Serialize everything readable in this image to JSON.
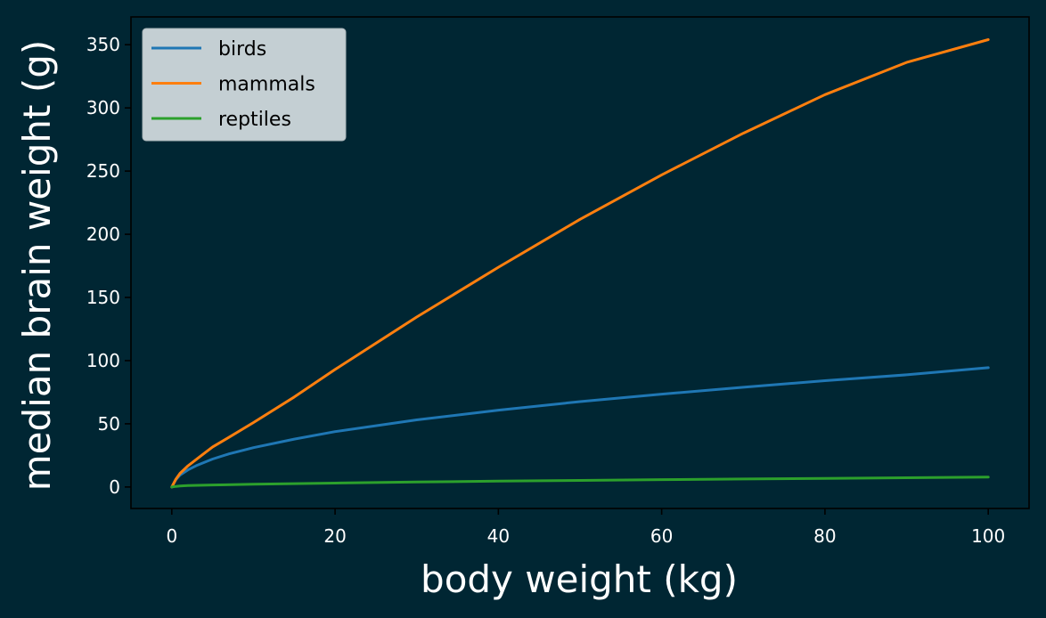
{
  "chart_data": {
    "type": "line",
    "xlabel": "body weight (kg)",
    "ylabel": "median brain weight (g)",
    "xlim": [
      -5,
      105
    ],
    "ylim": [
      -17,
      372
    ],
    "xticks": [
      0,
      20,
      40,
      60,
      80,
      100
    ],
    "yticks": [
      0,
      50,
      100,
      150,
      200,
      250,
      300,
      350
    ],
    "grid": false,
    "legend_position": "top-left",
    "colors": {
      "background": "#002633",
      "legend_bg": "#cfd8dc",
      "text": "#ffffff"
    },
    "series": [
      {
        "name": "birds",
        "color": "#1f77b4",
        "x": [
          0,
          0.5,
          1,
          2,
          3,
          5,
          7,
          10,
          15,
          20,
          30,
          40,
          50,
          60,
          70,
          80,
          90,
          100
        ],
        "y": [
          0,
          5.8,
          9.4,
          13.6,
          16.9,
          22.1,
          26.2,
          31.1,
          37.9,
          43.8,
          53.1,
          60.8,
          67.6,
          73.5,
          78.9,
          84.1,
          88.8,
          94.4
        ]
      },
      {
        "name": "mammals",
        "color": "#ff7f0e",
        "x": [
          0,
          0.5,
          1,
          2,
          3,
          5,
          7,
          10,
          15,
          20,
          30,
          40,
          50,
          60,
          70,
          80,
          90,
          100
        ],
        "y": [
          0,
          6.2,
          10.8,
          16.8,
          21.8,
          31.7,
          39.3,
          51.0,
          71.2,
          93.0,
          134.5,
          173.9,
          211.8,
          247.0,
          280.0,
          310.5,
          336.0,
          354.0
        ]
      },
      {
        "name": "reptiles",
        "color": "#2ca02c",
        "x": [
          0,
          0.5,
          1,
          2,
          5,
          10,
          20,
          30,
          40,
          50,
          60,
          70,
          80,
          90,
          100
        ],
        "y": [
          0,
          0.5,
          0.8,
          1.1,
          1.6,
          2.2,
          3.1,
          3.9,
          4.6,
          5.2,
          5.8,
          6.3,
          6.8,
          7.3,
          7.8
        ]
      }
    ]
  }
}
